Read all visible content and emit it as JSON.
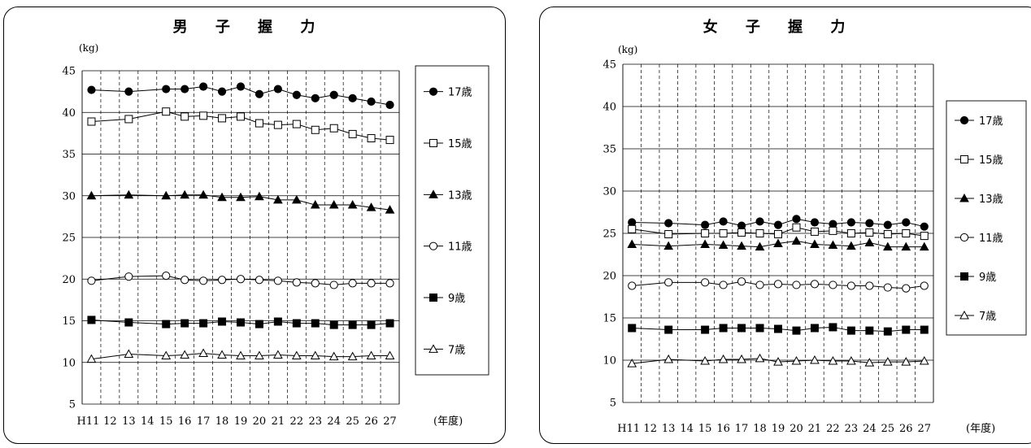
{
  "chart_data": [
    {
      "type": "line",
      "title": "男 子 握 力",
      "unit_label": "(kg)",
      "x_label": "(年度)",
      "categories": [
        "H11",
        "12",
        "13",
        "14",
        "15",
        "16",
        "17",
        "18",
        "19",
        "20",
        "21",
        "22",
        "23",
        "24",
        "25",
        "26",
        "27"
      ],
      "ylim": [
        5,
        45
      ],
      "yticks": [
        5,
        10,
        15,
        20,
        25,
        30,
        35,
        40,
        45
      ],
      "grid": true,
      "legend_position": "right",
      "series": [
        {
          "name": "17歳",
          "marker": "filled-circle",
          "values": [
            42.7,
            null,
            42.5,
            null,
            42.8,
            42.8,
            43.1,
            42.5,
            43.1,
            42.2,
            42.8,
            42.1,
            41.7,
            42.1,
            41.7,
            41.3,
            40.9
          ]
        },
        {
          "name": "15歳",
          "marker": "open-square",
          "values": [
            38.9,
            null,
            39.2,
            null,
            40.1,
            39.5,
            39.6,
            39.3,
            39.5,
            38.7,
            38.5,
            38.6,
            37.9,
            38.1,
            37.4,
            36.9,
            36.7
          ]
        },
        {
          "name": "13歳",
          "marker": "filled-triangle",
          "values": [
            30.0,
            null,
            30.1,
            null,
            30.0,
            30.1,
            30.1,
            29.8,
            29.8,
            29.9,
            29.5,
            29.5,
            28.9,
            28.9,
            28.9,
            28.6,
            28.3
          ]
        },
        {
          "name": "11歳",
          "marker": "open-circle",
          "values": [
            19.8,
            null,
            20.3,
            null,
            20.4,
            19.9,
            19.8,
            19.9,
            20.0,
            19.9,
            19.8,
            19.6,
            19.5,
            19.3,
            19.5,
            19.5,
            19.5
          ]
        },
        {
          "name": "9歳",
          "marker": "filled-square",
          "values": [
            15.1,
            null,
            14.8,
            null,
            14.6,
            14.7,
            14.7,
            14.9,
            14.8,
            14.6,
            14.9,
            14.7,
            14.7,
            14.5,
            14.5,
            14.5,
            14.7
          ]
        },
        {
          "name": "7歳",
          "marker": "open-triangle",
          "values": [
            10.4,
            null,
            11.0,
            null,
            10.8,
            10.9,
            11.1,
            10.9,
            10.8,
            10.8,
            10.9,
            10.8,
            10.8,
            10.7,
            10.7,
            10.8,
            10.8
          ]
        }
      ]
    },
    {
      "type": "line",
      "title": "女 子 握 力",
      "unit_label": "(kg)",
      "x_label": "(年度)",
      "categories": [
        "H11",
        "12",
        "13",
        "14",
        "15",
        "16",
        "17",
        "18",
        "19",
        "20",
        "21",
        "22",
        "23",
        "24",
        "25",
        "26",
        "27"
      ],
      "ylim": [
        5,
        45
      ],
      "yticks": [
        5,
        10,
        15,
        20,
        25,
        30,
        35,
        40,
        45
      ],
      "grid": true,
      "legend_position": "right",
      "series": [
        {
          "name": "17歳",
          "marker": "filled-circle",
          "values": [
            26.3,
            null,
            26.2,
            null,
            26.0,
            26.4,
            25.9,
            26.4,
            26.0,
            26.7,
            26.3,
            26.1,
            26.3,
            26.2,
            26.0,
            26.3,
            25.8
          ]
        },
        {
          "name": "15歳",
          "marker": "open-square",
          "values": [
            25.5,
            null,
            24.9,
            null,
            25.0,
            25.0,
            25.1,
            25.0,
            24.9,
            25.7,
            25.2,
            25.3,
            25.0,
            25.1,
            24.9,
            25.0,
            24.7
          ]
        },
        {
          "name": "13歳",
          "marker": "filled-triangle",
          "values": [
            23.7,
            null,
            23.5,
            null,
            23.7,
            23.6,
            23.5,
            23.4,
            23.8,
            24.1,
            23.7,
            23.6,
            23.5,
            23.9,
            23.4,
            23.4,
            23.4
          ]
        },
        {
          "name": "11歳",
          "marker": "open-circle",
          "values": [
            18.8,
            null,
            19.2,
            null,
            19.2,
            18.9,
            19.3,
            18.9,
            19.0,
            18.9,
            19.0,
            18.9,
            18.8,
            18.8,
            18.6,
            18.5,
            18.8
          ]
        },
        {
          "name": "9歳",
          "marker": "filled-square",
          "values": [
            13.8,
            null,
            13.6,
            null,
            13.6,
            13.8,
            13.8,
            13.8,
            13.7,
            13.5,
            13.8,
            13.9,
            13.5,
            13.5,
            13.4,
            13.6,
            13.6
          ]
        },
        {
          "name": "7歳",
          "marker": "open-triangle",
          "values": [
            9.6,
            null,
            10.1,
            null,
            9.9,
            10.1,
            10.1,
            10.2,
            9.8,
            9.9,
            10.0,
            9.9,
            9.9,
            9.7,
            9.8,
            9.8,
            9.9
          ]
        }
      ]
    }
  ]
}
